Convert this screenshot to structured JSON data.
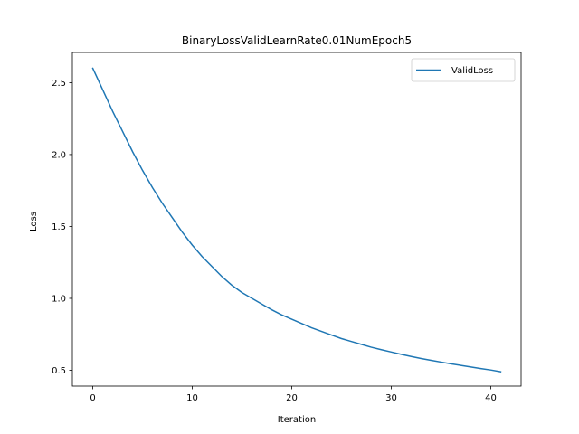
{
  "chart_data": {
    "type": "line",
    "title": "BinaryLossValidLearnRate0.01NumEpoch5",
    "xlabel": "Iteration",
    "ylabel": "Loss",
    "xlim": [
      -2.05,
      43.05
    ],
    "ylim": [
      0.39,
      2.71
    ],
    "xticks": [
      0,
      10,
      20,
      30,
      40
    ],
    "xtick_labels": [
      "0",
      "10",
      "20",
      "30",
      "40"
    ],
    "yticks": [
      0.5,
      1.0,
      1.5,
      2.0,
      2.5
    ],
    "ytick_labels": [
      "0.5",
      "1.0",
      "1.5",
      "2.0",
      "2.5"
    ],
    "grid": false,
    "legend": {
      "position": "upper-right"
    },
    "series": [
      {
        "name": "ValidLoss",
        "color": "#1f77b4",
        "x": [
          0,
          1,
          2,
          3,
          4,
          5,
          6,
          7,
          8,
          9,
          10,
          11,
          12,
          13,
          14,
          15,
          16,
          17,
          18,
          19,
          20,
          21,
          22,
          23,
          24,
          25,
          26,
          27,
          28,
          29,
          30,
          31,
          32,
          33,
          34,
          35,
          36,
          37,
          38,
          39,
          40,
          41
        ],
        "y": [
          2.6,
          2.45,
          2.3,
          2.16,
          2.02,
          1.89,
          1.77,
          1.66,
          1.56,
          1.46,
          1.37,
          1.29,
          1.22,
          1.15,
          1.09,
          1.04,
          1.0,
          0.96,
          0.92,
          0.885,
          0.855,
          0.825,
          0.795,
          0.77,
          0.745,
          0.72,
          0.7,
          0.68,
          0.66,
          0.643,
          0.627,
          0.611,
          0.596,
          0.582,
          0.569,
          0.557,
          0.545,
          0.534,
          0.523,
          0.512,
          0.502,
          0.49
        ]
      }
    ]
  }
}
